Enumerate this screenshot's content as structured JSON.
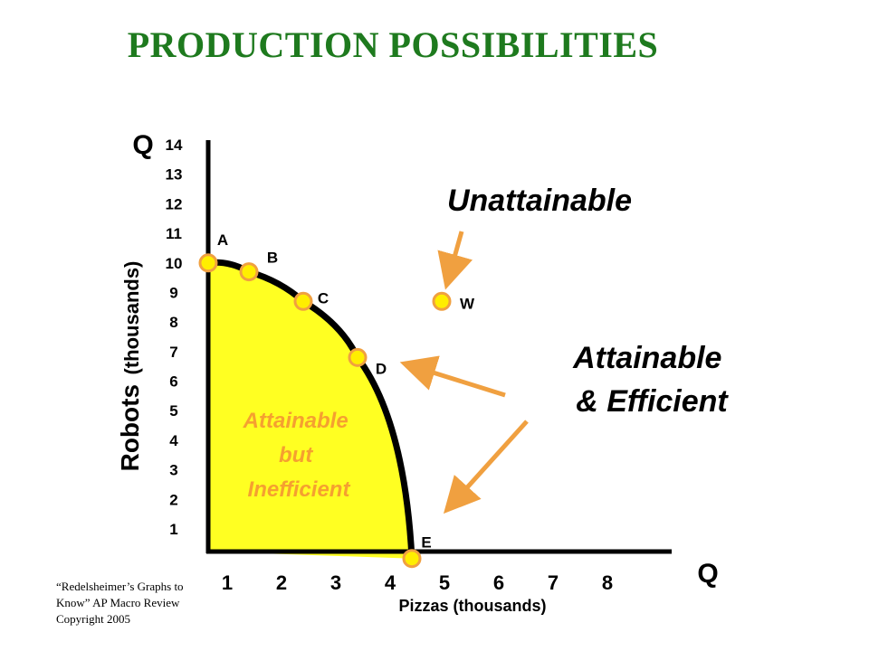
{
  "page": {
    "title": "PRODUCTION POSSIBILITIES",
    "credit": [
      "“Redelsheimer’s Graphs to",
      "Know”  AP Macro Review",
      "Copyright 2005"
    ]
  },
  "chart_data": {
    "type": "line",
    "title": "PRODUCTION POSSIBILITIES",
    "xlabel": "Pizzas (thousands)",
    "ylabel_main": "Robots",
    "ylabel_unit": "(thousands)",
    "x_axis_symbol": "Q",
    "y_axis_symbol": "Q",
    "x_ticks": [
      1,
      2,
      3,
      4,
      5,
      6,
      7,
      8
    ],
    "y_ticks": [
      14,
      13,
      12,
      11,
      10,
      9,
      8,
      7,
      6,
      5,
      4,
      3,
      2,
      1
    ],
    "xlim": [
      0,
      8.5
    ],
    "ylim": [
      0,
      15
    ],
    "grid": false,
    "points": [
      {
        "label": "A",
        "x": 0,
        "y": 10
      },
      {
        "label": "B",
        "x": 0.75,
        "y": 9.7
      },
      {
        "label": "C",
        "x": 1.75,
        "y": 8.7
      },
      {
        "label": "D",
        "x": 2.75,
        "y": 6.8
      },
      {
        "label": "E",
        "x": 3.75,
        "y": 0
      }
    ],
    "unattainable_point": {
      "label": "W",
      "x": 4.3,
      "y": 8.7
    },
    "region_labels": {
      "inside": [
        "Attainable",
        "but",
        "Inefficient"
      ],
      "frontier": [
        "Attainable",
        "& Efficient"
      ],
      "outside": "Unattainable"
    },
    "colors": {
      "axis": "#000000",
      "curve": "#000000",
      "fill": "#ffff22",
      "point": "#ffee00",
      "point_outline": "#f0a040",
      "arrow": "#f0a040",
      "inside_text": "#f5a030",
      "title": "#1e7a1e"
    }
  }
}
